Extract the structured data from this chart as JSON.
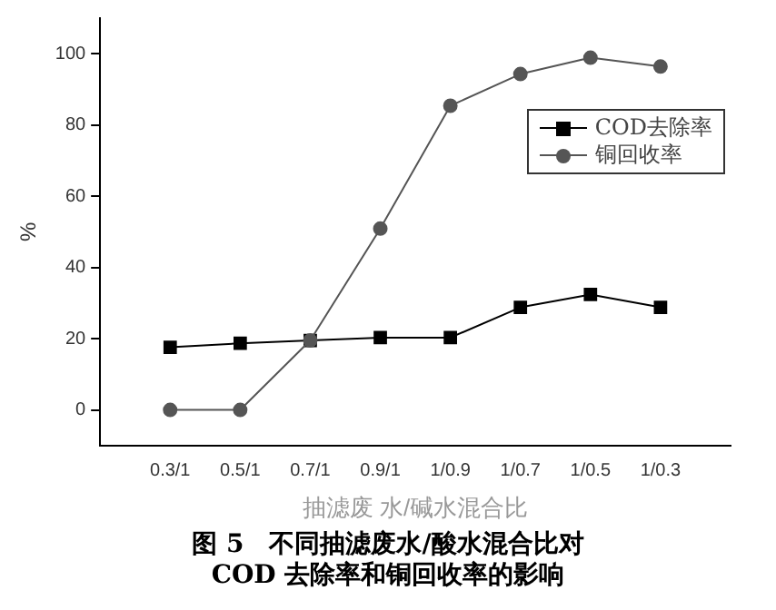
{
  "chart_data": {
    "type": "line",
    "title": "图 5　不同抽滤废水/酸水混合比对\nCOD 去除率和铜回收率的影响",
    "xlabel": "抽滤废 水/碱水混合比",
    "ylabel": "%",
    "categories": [
      "0.3/1",
      "0.5/1",
      "0.7/1",
      "0.9/1",
      "1/0.9",
      "1/0.7",
      "1/0.5",
      "1/0.3"
    ],
    "series": [
      {
        "name": "COD去除率",
        "color": "#000000",
        "marker": "square",
        "values": [
          17.6,
          18.7,
          19.5,
          20.3,
          20.3,
          28.8,
          32.4,
          28.8
        ]
      },
      {
        "name": "铜回收率",
        "color": "#555555",
        "marker": "circle",
        "values": [
          0,
          0,
          19.5,
          50.9,
          85.4,
          94.3,
          98.9,
          96.4
        ]
      }
    ],
    "ylim": [
      -10,
      110
    ],
    "yticks": [
      0,
      20,
      40,
      60,
      80,
      100
    ],
    "grid": false,
    "legend": "top right",
    "line_style": "solid"
  }
}
